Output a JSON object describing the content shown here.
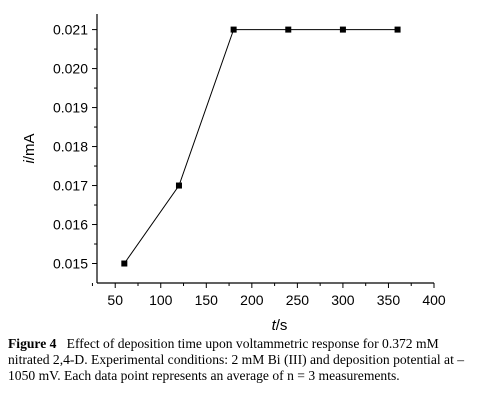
{
  "chart_data": {
    "type": "line",
    "title": "",
    "xlabel": {
      "var": "t",
      "unit": "/s"
    },
    "ylabel": {
      "var": "i",
      "unit": "/mA"
    },
    "xlim": [
      30,
      400
    ],
    "ylim": [
      0.0145,
      0.0214
    ],
    "xticks": [
      50,
      100,
      150,
      200,
      250,
      300,
      350,
      400
    ],
    "yticks": [
      0.015,
      0.016,
      0.017,
      0.018,
      0.019,
      0.02,
      0.021
    ],
    "ytick_labels": [
      "0.015",
      "0.016",
      "0.017",
      "0.018",
      "0.019",
      "0.020",
      "0.021"
    ],
    "grid": false,
    "series": [
      {
        "x": [
          60,
          120,
          180,
          240,
          300,
          360
        ],
        "y": [
          0.015,
          0.017,
          0.021,
          0.021,
          0.021,
          0.021
        ],
        "color": "#000000",
        "marker": "square"
      }
    ]
  },
  "caption": {
    "label": "Figure 4",
    "text": "Effect of deposition time upon voltammetric response for 0.372 mM nitrated 2,4-D. Experimental conditions: 2 mM Bi (III) and deposition potential at –1050 mV. Each data point represents an average of n = 3 measurements."
  }
}
